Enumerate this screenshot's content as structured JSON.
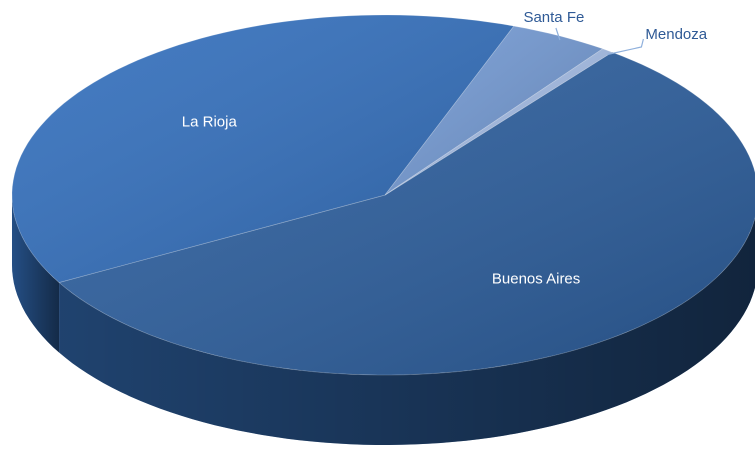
{
  "chart_data": {
    "type": "pie",
    "categories": [
      "Buenos Aires",
      "La Rioja",
      "Santa Fe",
      "Mendoza"
    ],
    "values": [
      56.5,
      38.7,
      4.3,
      0.5
    ],
    "colors": [
      "#2d5f9e",
      "#3470bd",
      "#7399d2",
      "#a5bde6"
    ]
  }
}
